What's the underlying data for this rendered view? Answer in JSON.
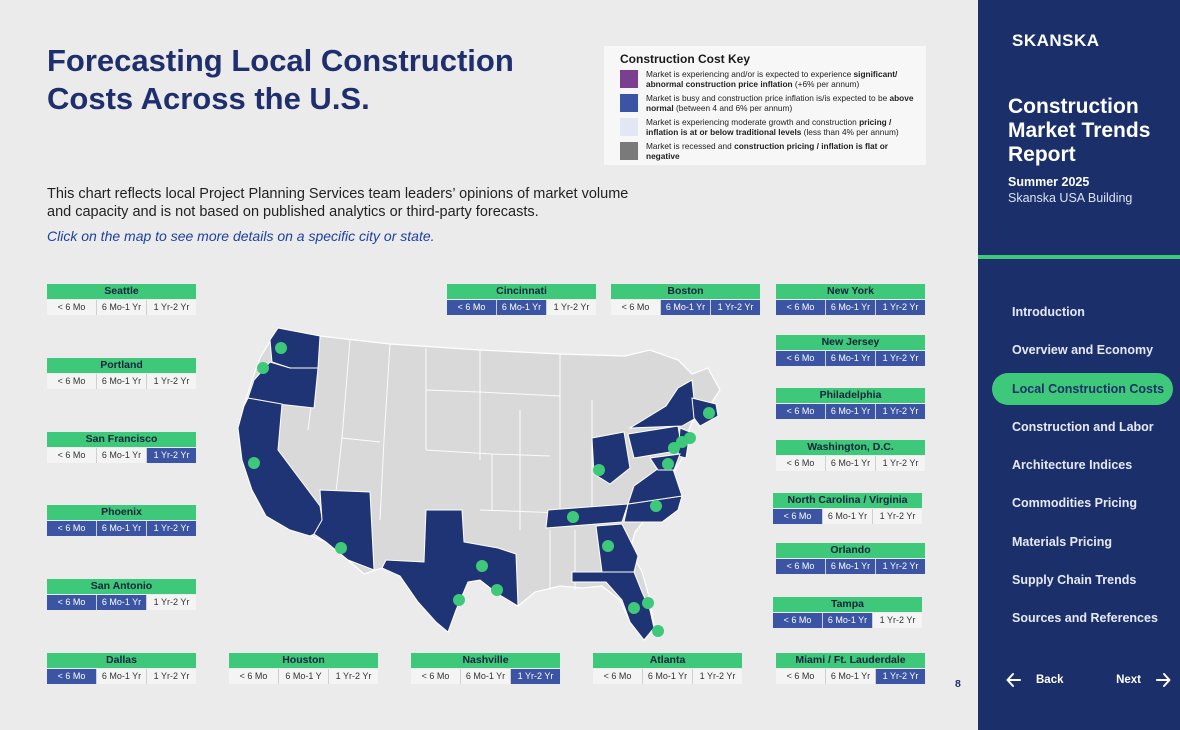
{
  "title": {
    "line1": "Forecasting Local Construction",
    "line2": "Costs Across the U.S."
  },
  "description": "This chart reflects local Project Planning Services team leaders’ opinions of market volume and capacity and is not based on published analytics or third-party forecasts.",
  "description_link": "Click on the map to see more details on a specific city or state.",
  "key": {
    "title": "Construction Cost Key",
    "items": [
      {
        "color": "#7b3f8f",
        "pre": "Market is experiencing and/or is expected to experience ",
        "bold": "significant/ abnormal construction price inflation",
        "post": " (+6% per annum)"
      },
      {
        "color": "#3b54a3",
        "pre": "Market is busy and construction price inflation is/is expected to be ",
        "bold": "above normal",
        "post": " (between 4 and 6% per annum)"
      },
      {
        "color": "#e3e6f3",
        "pre": "Market is experiencing moderate growth and construction ",
        "bold": "pricing / inflation is at or below traditional levels",
        "post": " (less than 4% per annum)"
      },
      {
        "color": "#7a7a7a",
        "pre": "Market is recessed and ",
        "bold": "construction pricing / inflation is flat or negative",
        "post": ""
      }
    ]
  },
  "colors": {
    "green": "#3ec97a",
    "navy": "#1b2f6b",
    "active": "#3b54a3"
  },
  "cards": [
    {
      "name": "Seattle",
      "cells": [
        "< 6 Mo",
        "6 Mo-1 Yr",
        "1 Yr-2 Yr"
      ],
      "active": [
        false,
        false,
        false
      ]
    },
    {
      "name": "Portland",
      "cells": [
        "< 6 Mo",
        "6 Mo-1 Yr",
        "1 Yr-2 Yr"
      ],
      "active": [
        false,
        false,
        false
      ]
    },
    {
      "name": "San Francisco",
      "cells": [
        "< 6 Mo",
        "6 Mo-1 Yr",
        "1 Yr-2 Yr"
      ],
      "active": [
        false,
        false,
        true
      ]
    },
    {
      "name": "Phoenix",
      "cells": [
        "< 6 Mo",
        "6 Mo-1 Yr",
        "1 Yr-2 Yr"
      ],
      "active": [
        true,
        true,
        true
      ]
    },
    {
      "name": "San Antonio",
      "cells": [
        "< 6 Mo",
        "6 Mo-1 Yr",
        "1 Yr-2 Yr"
      ],
      "active": [
        true,
        true,
        false
      ]
    },
    {
      "name": "Dallas",
      "cells": [
        "< 6 Mo",
        "6 Mo-1 Yr",
        "1 Yr-2 Yr"
      ],
      "active": [
        true,
        false,
        false
      ]
    },
    {
      "name": "Houston",
      "cells": [
        "< 6 Mo",
        "6 Mo-1 Y",
        "1 Yr-2 Yr"
      ],
      "active": [
        false,
        false,
        false
      ]
    },
    {
      "name": "Nashville",
      "cells": [
        "< 6 Mo",
        "6 Mo-1 Yr",
        "1 Yr-2 Yr"
      ],
      "active": [
        false,
        false,
        true
      ]
    },
    {
      "name": "Atlanta",
      "cells": [
        "< 6 Mo",
        "6 Mo-1 Yr",
        "1 Yr-2 Yr"
      ],
      "active": [
        false,
        false,
        false
      ]
    },
    {
      "name": "Miami / Ft. Lauderdale",
      "cells": [
        "< 6 Mo",
        "6 Mo-1 Yr",
        "1 Yr-2 Yr"
      ],
      "active": [
        false,
        false,
        true
      ]
    },
    {
      "name": "Cincinnati",
      "cells": [
        "< 6 Mo",
        "6 Mo-1 Yr",
        "1 Yr-2 Yr"
      ],
      "active": [
        true,
        true,
        false
      ]
    },
    {
      "name": "Boston",
      "cells": [
        "< 6 Mo",
        "6 Mo-1 Yr",
        "1 Yr-2 Yr"
      ],
      "active": [
        false,
        true,
        true
      ]
    },
    {
      "name": "New York",
      "cells": [
        "< 6 Mo",
        "6 Mo-1 Yr",
        "1 Yr-2 Yr"
      ],
      "active": [
        true,
        true,
        true
      ]
    },
    {
      "name": "New Jersey",
      "cells": [
        "< 6 Mo",
        "6 Mo-1 Yr",
        "1 Yr-2 Yr"
      ],
      "active": [
        true,
        true,
        true
      ]
    },
    {
      "name": "Philadelphia",
      "cells": [
        "< 6 Mo",
        "6 Mo-1 Yr",
        "1 Yr-2 Yr"
      ],
      "active": [
        true,
        true,
        true
      ]
    },
    {
      "name": "Washington, D.C.",
      "cells": [
        "< 6 Mo",
        "6 Mo-1 Yr",
        "1 Yr-2 Yr"
      ],
      "active": [
        false,
        false,
        false
      ]
    },
    {
      "name": "North Carolina / Virginia",
      "cells": [
        "< 6 Mo",
        "6 Mo-1 Yr",
        "1 Yr-2 Yr"
      ],
      "active": [
        true,
        false,
        false
      ]
    },
    {
      "name": "Orlando",
      "cells": [
        "< 6 Mo",
        "6 Mo-1 Yr",
        "1 Yr-2 Yr"
      ],
      "active": [
        true,
        true,
        true
      ]
    },
    {
      "name": "Tampa",
      "cells": [
        "< 6 Mo",
        "6 Mo-1 Yr",
        "1 Yr-2 Yr"
      ],
      "active": [
        true,
        true,
        false
      ]
    }
  ],
  "sidebar": {
    "brand": "SKANSKA",
    "report_title": "Construction Market Trends Report",
    "report_season": "Summer 2025",
    "report_org": "Skanska USA Building",
    "nav": [
      "Introduction",
      "Overview and Economy",
      "Local Construction Costs",
      "Construction and Labor",
      "Architecture Indices",
      "Commodities Pricing",
      "Materials Pricing",
      "Supply Chain Trends",
      "Sources and References"
    ],
    "active_index": 2,
    "back": "Back",
    "next": "Next"
  },
  "page_number": "8"
}
